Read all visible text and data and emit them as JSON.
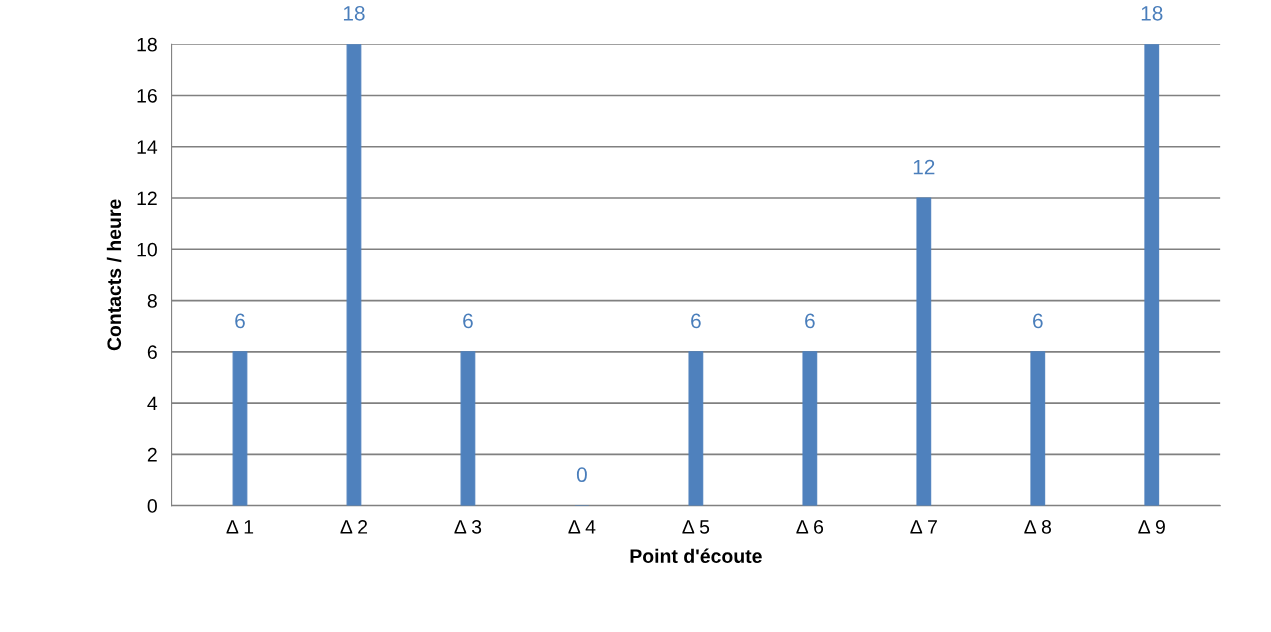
{
  "chart_data": {
    "type": "bar",
    "categories": [
      "Δ 1",
      "Δ 2",
      "Δ 3",
      "Δ 4",
      "Δ 5",
      "Δ 6",
      "Δ 7",
      "Δ 8",
      "Δ 9"
    ],
    "values": [
      6,
      18,
      6,
      0,
      6,
      6,
      12,
      6,
      18
    ],
    "color": "#4f81bd",
    "xlabel": "Point d'écoute",
    "ylabel": "Contacts / heure",
    "ylim": [
      0,
      18
    ],
    "yticks": [
      0,
      2,
      4,
      6,
      8,
      10,
      12,
      14,
      16,
      18
    ],
    "grid": "y",
    "data_labels": true,
    "legend": false
  }
}
